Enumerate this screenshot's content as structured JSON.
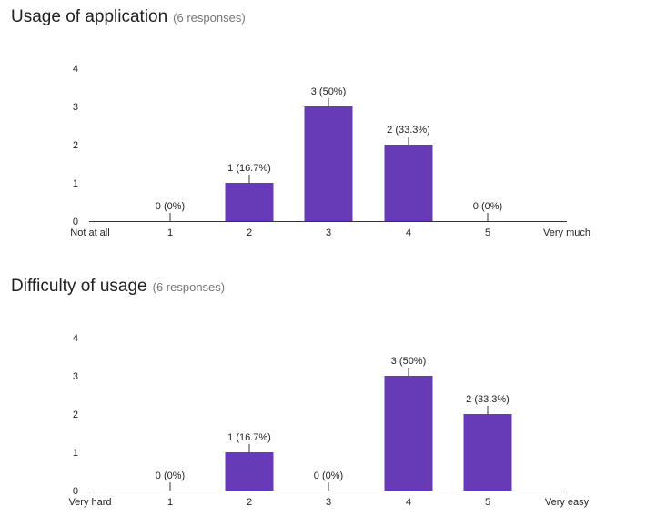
{
  "charts": [
    {
      "title": "Usage of application",
      "responses": "(6 responses)"
    },
    {
      "title": "Difficulty of usage",
      "responses": "(6 responses)"
    }
  ],
  "colors": {
    "bar": "#673ab7",
    "axis": "#333333",
    "text": "#222222"
  },
  "chart_data": [
    {
      "type": "bar",
      "title": "Usage of application",
      "categories": [
        "1",
        "2",
        "3",
        "4",
        "5"
      ],
      "values": [
        0,
        1,
        3,
        2,
        0
      ],
      "data_labels": [
        "0 (0%)",
        "1 (16.7%)",
        "3 (50%)",
        "2 (33.3%)",
        "0 (0%)"
      ],
      "x_low_label": "Not at all",
      "x_high_label": "Very much",
      "yticks": [
        0,
        1,
        2,
        3,
        4
      ],
      "ylim": [
        0,
        4
      ],
      "grid": false
    },
    {
      "type": "bar",
      "title": "Difficulty of usage",
      "categories": [
        "1",
        "2",
        "3",
        "4",
        "5"
      ],
      "values": [
        0,
        1,
        0,
        3,
        2
      ],
      "data_labels": [
        "0 (0%)",
        "1 (16.7%)",
        "0 (0%)",
        "3 (50%)",
        "2 (33.3%)"
      ],
      "x_low_label": "Very hard",
      "x_high_label": "Very easy",
      "yticks": [
        0,
        1,
        2,
        3,
        4
      ],
      "ylim": [
        0,
        4
      ],
      "grid": false
    }
  ]
}
